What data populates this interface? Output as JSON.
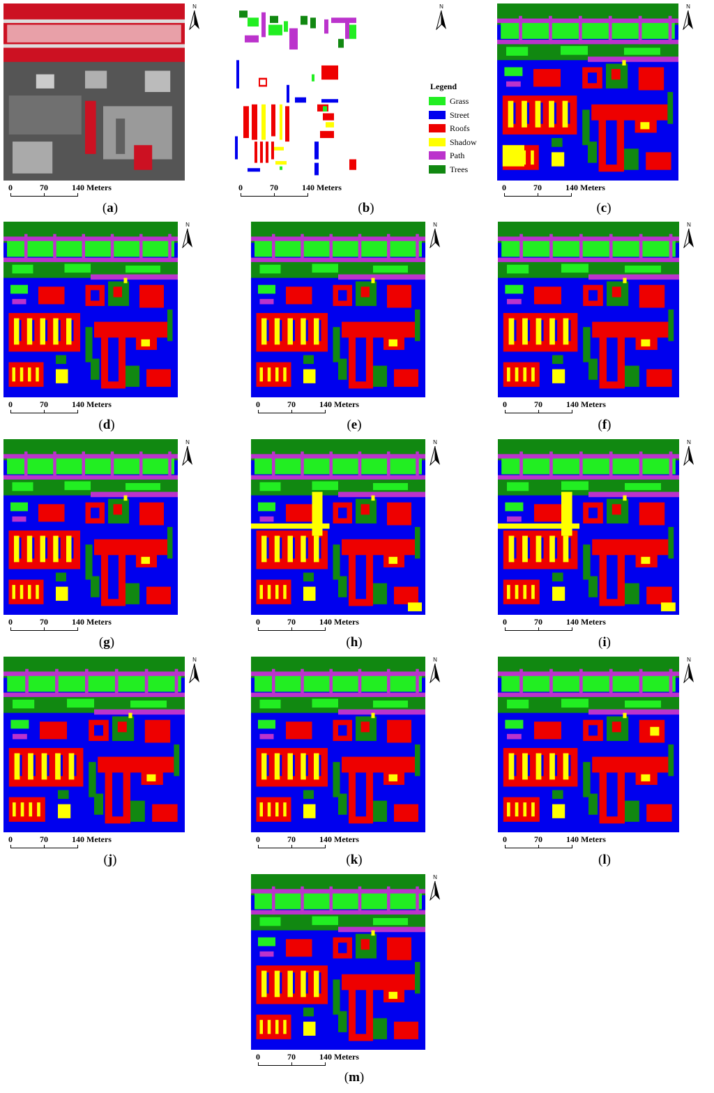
{
  "legend": {
    "title": "Legend",
    "classes": [
      {
        "label": "Grass",
        "color": "#22ee22"
      },
      {
        "label": "Street",
        "color": "#0000ee"
      },
      {
        "label": "Roofs",
        "color": "#ee0000"
      },
      {
        "label": "Shadow",
        "color": "#ffff00"
      },
      {
        "label": "Path",
        "color": "#bb33cc"
      },
      {
        "label": "Trees",
        "color": "#118811"
      }
    ]
  },
  "north_label": "N",
  "scale": {
    "zero": "0",
    "mid": "70",
    "end": "140 Meters"
  },
  "colors": {
    "trees": "#118811",
    "grass": "#22ee22",
    "street": "#0000ee",
    "roofs": "#ee0000",
    "shadow": "#ffff00",
    "path": "#bb33cc",
    "satellite_base": "#555555",
    "satellite_red": "#cc1122"
  },
  "panels": [
    {
      "id": "a",
      "caption": "a",
      "kind": "satellite"
    },
    {
      "id": "b",
      "caption": "b",
      "kind": "ground-truth"
    },
    {
      "id": "c",
      "caption": "c",
      "kind": "classification"
    },
    {
      "id": "d",
      "caption": "d",
      "kind": "classification"
    },
    {
      "id": "e",
      "caption": "e",
      "kind": "classification"
    },
    {
      "id": "f",
      "caption": "f",
      "kind": "classification"
    },
    {
      "id": "g",
      "caption": "g",
      "kind": "classification"
    },
    {
      "id": "h",
      "caption": "h",
      "kind": "classification"
    },
    {
      "id": "i",
      "caption": "i",
      "kind": "classification"
    },
    {
      "id": "j",
      "caption": "j",
      "kind": "classification"
    },
    {
      "id": "k",
      "caption": "k",
      "kind": "classification"
    },
    {
      "id": "l",
      "caption": "l",
      "kind": "classification"
    },
    {
      "id": "m",
      "caption": "m",
      "kind": "classification"
    }
  ]
}
